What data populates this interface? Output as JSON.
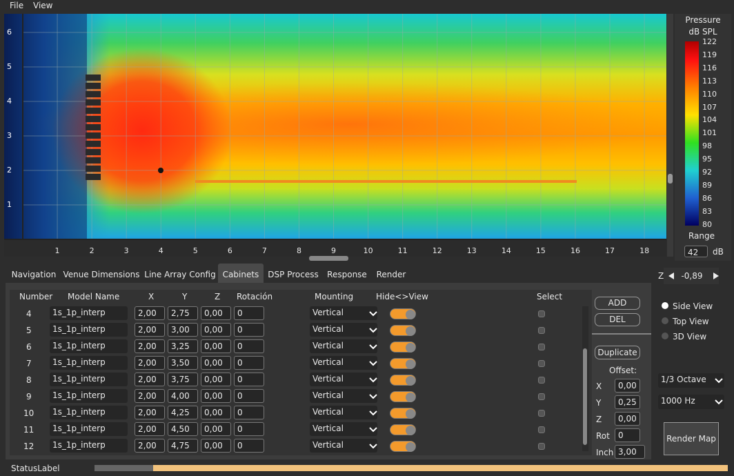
{
  "menu": [
    "File",
    "View"
  ],
  "plot": {
    "x_ticks": [
      "1",
      "2",
      "3",
      "4",
      "5",
      "6",
      "7",
      "8",
      "9",
      "10",
      "11",
      "12",
      "13",
      "14",
      "15",
      "16",
      "17",
      "18"
    ],
    "y_ticks": [
      "1",
      "2",
      "3",
      "4",
      "5",
      "6"
    ]
  },
  "colorbar": {
    "title": "Pressure",
    "unit": "dB SPL",
    "ticks": [
      "122",
      "119",
      "116",
      "113",
      "110",
      "107",
      "104",
      "101",
      "98",
      "95",
      "92",
      "89",
      "86",
      "83",
      "80"
    ],
    "range_label": "Range",
    "range_value": "42",
    "range_unit": "dB"
  },
  "tabs": [
    "Navigation",
    "Venue Dimensions",
    "Line Array Config",
    "Cabinets",
    "DSP Process",
    "Response",
    "Render"
  ],
  "active_tab": "Cabinets",
  "table": {
    "headers": [
      "Number",
      "Model Name",
      "X",
      "Y",
      "Z",
      "Rotación",
      "Mounting",
      "Hide<>View",
      "Select"
    ],
    "rows": [
      [
        "4",
        "1s_1p_interp",
        "2,00",
        "2,75",
        "0,00",
        "0",
        "Vertical"
      ],
      [
        "5",
        "1s_1p_interp",
        "2,00",
        "3,00",
        "0,00",
        "0",
        "Vertical"
      ],
      [
        "6",
        "1s_1p_interp",
        "2,00",
        "3,25",
        "0,00",
        "0",
        "Vertical"
      ],
      [
        "7",
        "1s_1p_interp",
        "2,00",
        "3,50",
        "0,00",
        "0",
        "Vertical"
      ],
      [
        "8",
        "1s_1p_interp",
        "2,00",
        "3,75",
        "0,00",
        "0",
        "Vertical"
      ],
      [
        "9",
        "1s_1p_interp",
        "2,00",
        "4,00",
        "0,00",
        "0",
        "Vertical"
      ],
      [
        "10",
        "1s_1p_interp",
        "2,00",
        "4,25",
        "0,00",
        "0",
        "Vertical"
      ],
      [
        "11",
        "1s_1p_interp",
        "2,00",
        "4,50",
        "0,00",
        "0",
        "Vertical"
      ],
      [
        "12",
        "1s_1p_interp",
        "2,00",
        "4,75",
        "0,00",
        "0",
        "Vertical"
      ]
    ]
  },
  "buttons": {
    "add": "ADD",
    "del": "DEL",
    "duplicate": "Duplicate",
    "render_map": "Render Map"
  },
  "offset": {
    "title": "Offset:",
    "fields": [
      [
        "X",
        "0,00"
      ],
      [
        "Y",
        "0,25"
      ],
      [
        "Z",
        "0,00"
      ],
      [
        "Rot",
        "0"
      ],
      [
        "Inch",
        "3,00"
      ]
    ]
  },
  "z_control": {
    "label": "Z",
    "value": "-0,89"
  },
  "views": [
    "Side View",
    "Top View",
    "3D View"
  ],
  "dropdowns": [
    "1/3 Octave",
    "1000 Hz"
  ],
  "status": "StatusLabel"
}
